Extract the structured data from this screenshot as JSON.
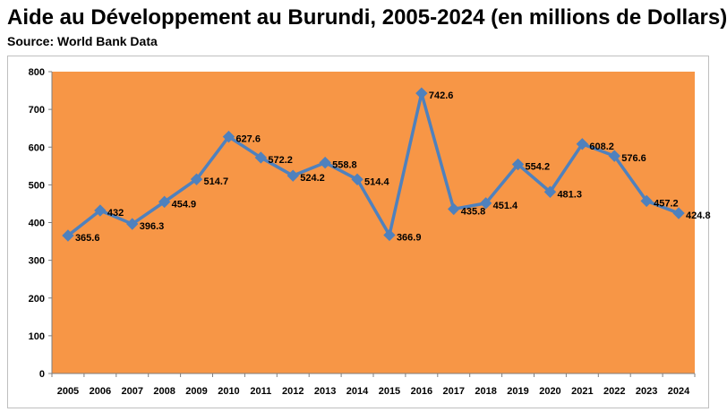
{
  "title": "Aide au Développement au Burundi, 2005-2024 (en millions de Dollars)",
  "subtitle": "Source: World Bank Data",
  "colors": {
    "plot_background": "#f79646",
    "line": "#4f81bd",
    "marker": "#4f81bd"
  },
  "chart_data": {
    "type": "line",
    "title": "Aide au Développement au Burundi, 2005-2024 (en millions de Dollars)",
    "xlabel": "",
    "ylabel": "",
    "categories": [
      "2005",
      "2006",
      "2007",
      "2008",
      "2009",
      "2010",
      "2011",
      "2012",
      "2013",
      "2014",
      "2015",
      "2016",
      "2017",
      "2018",
      "2019",
      "2020",
      "2021",
      "2022",
      "2023",
      "2024"
    ],
    "values": [
      365.6,
      432,
      396.3,
      454.9,
      514.7,
      627.6,
      572.2,
      524.2,
      558.8,
      514.4,
      366.9,
      742.6,
      435.8,
      451.4,
      554.2,
      481.3,
      608.2,
      576.6,
      457.2,
      424.8
    ],
    "data_labels": [
      "365.6",
      "432",
      "396.3",
      "454.9",
      "514.7",
      "627.6",
      "572.2",
      "524.2",
      "558.8",
      "514.4",
      "366.9",
      "742.6",
      "435.8",
      "451.4",
      "554.2",
      "481.3",
      "608.2",
      "576.6",
      "457.2",
      "424.8"
    ],
    "y_ticks": [
      "0",
      "100",
      "200",
      "300",
      "400",
      "500",
      "600",
      "700",
      "800"
    ],
    "ylim": [
      0,
      800
    ],
    "grid": false,
    "legend": "none",
    "marker": "diamond"
  }
}
